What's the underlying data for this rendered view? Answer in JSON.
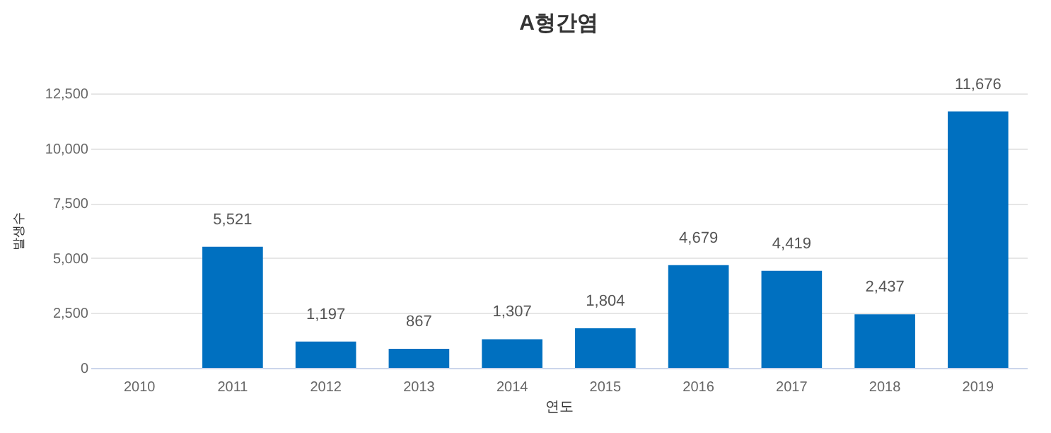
{
  "chart_data": {
    "type": "bar",
    "title": "A형간염",
    "xlabel": "연도",
    "ylabel": "발생수",
    "categories": [
      "2010",
      "2011",
      "2012",
      "2013",
      "2014",
      "2015",
      "2016",
      "2017",
      "2018",
      "2019"
    ],
    "values": [
      null,
      5521,
      1197,
      867,
      1307,
      1804,
      4679,
      4419,
      2437,
      11676
    ],
    "value_labels": [
      null,
      "5,521",
      "1,197",
      "867",
      "1,307",
      "1,804",
      "4,679",
      "4,419",
      "2,437",
      "11,676"
    ],
    "color": "#0070c0",
    "ylim": [
      0,
      12500
    ],
    "yticks": [
      {
        "value": 0,
        "label": "0"
      },
      {
        "value": 2500,
        "label": "2,500"
      },
      {
        "value": 5000,
        "label": "5,000"
      },
      {
        "value": 7500,
        "label": "7,500"
      },
      {
        "value": 10000,
        "label": "10,000"
      },
      {
        "value": 12500,
        "label": "12,500"
      }
    ],
    "grid": "y"
  }
}
